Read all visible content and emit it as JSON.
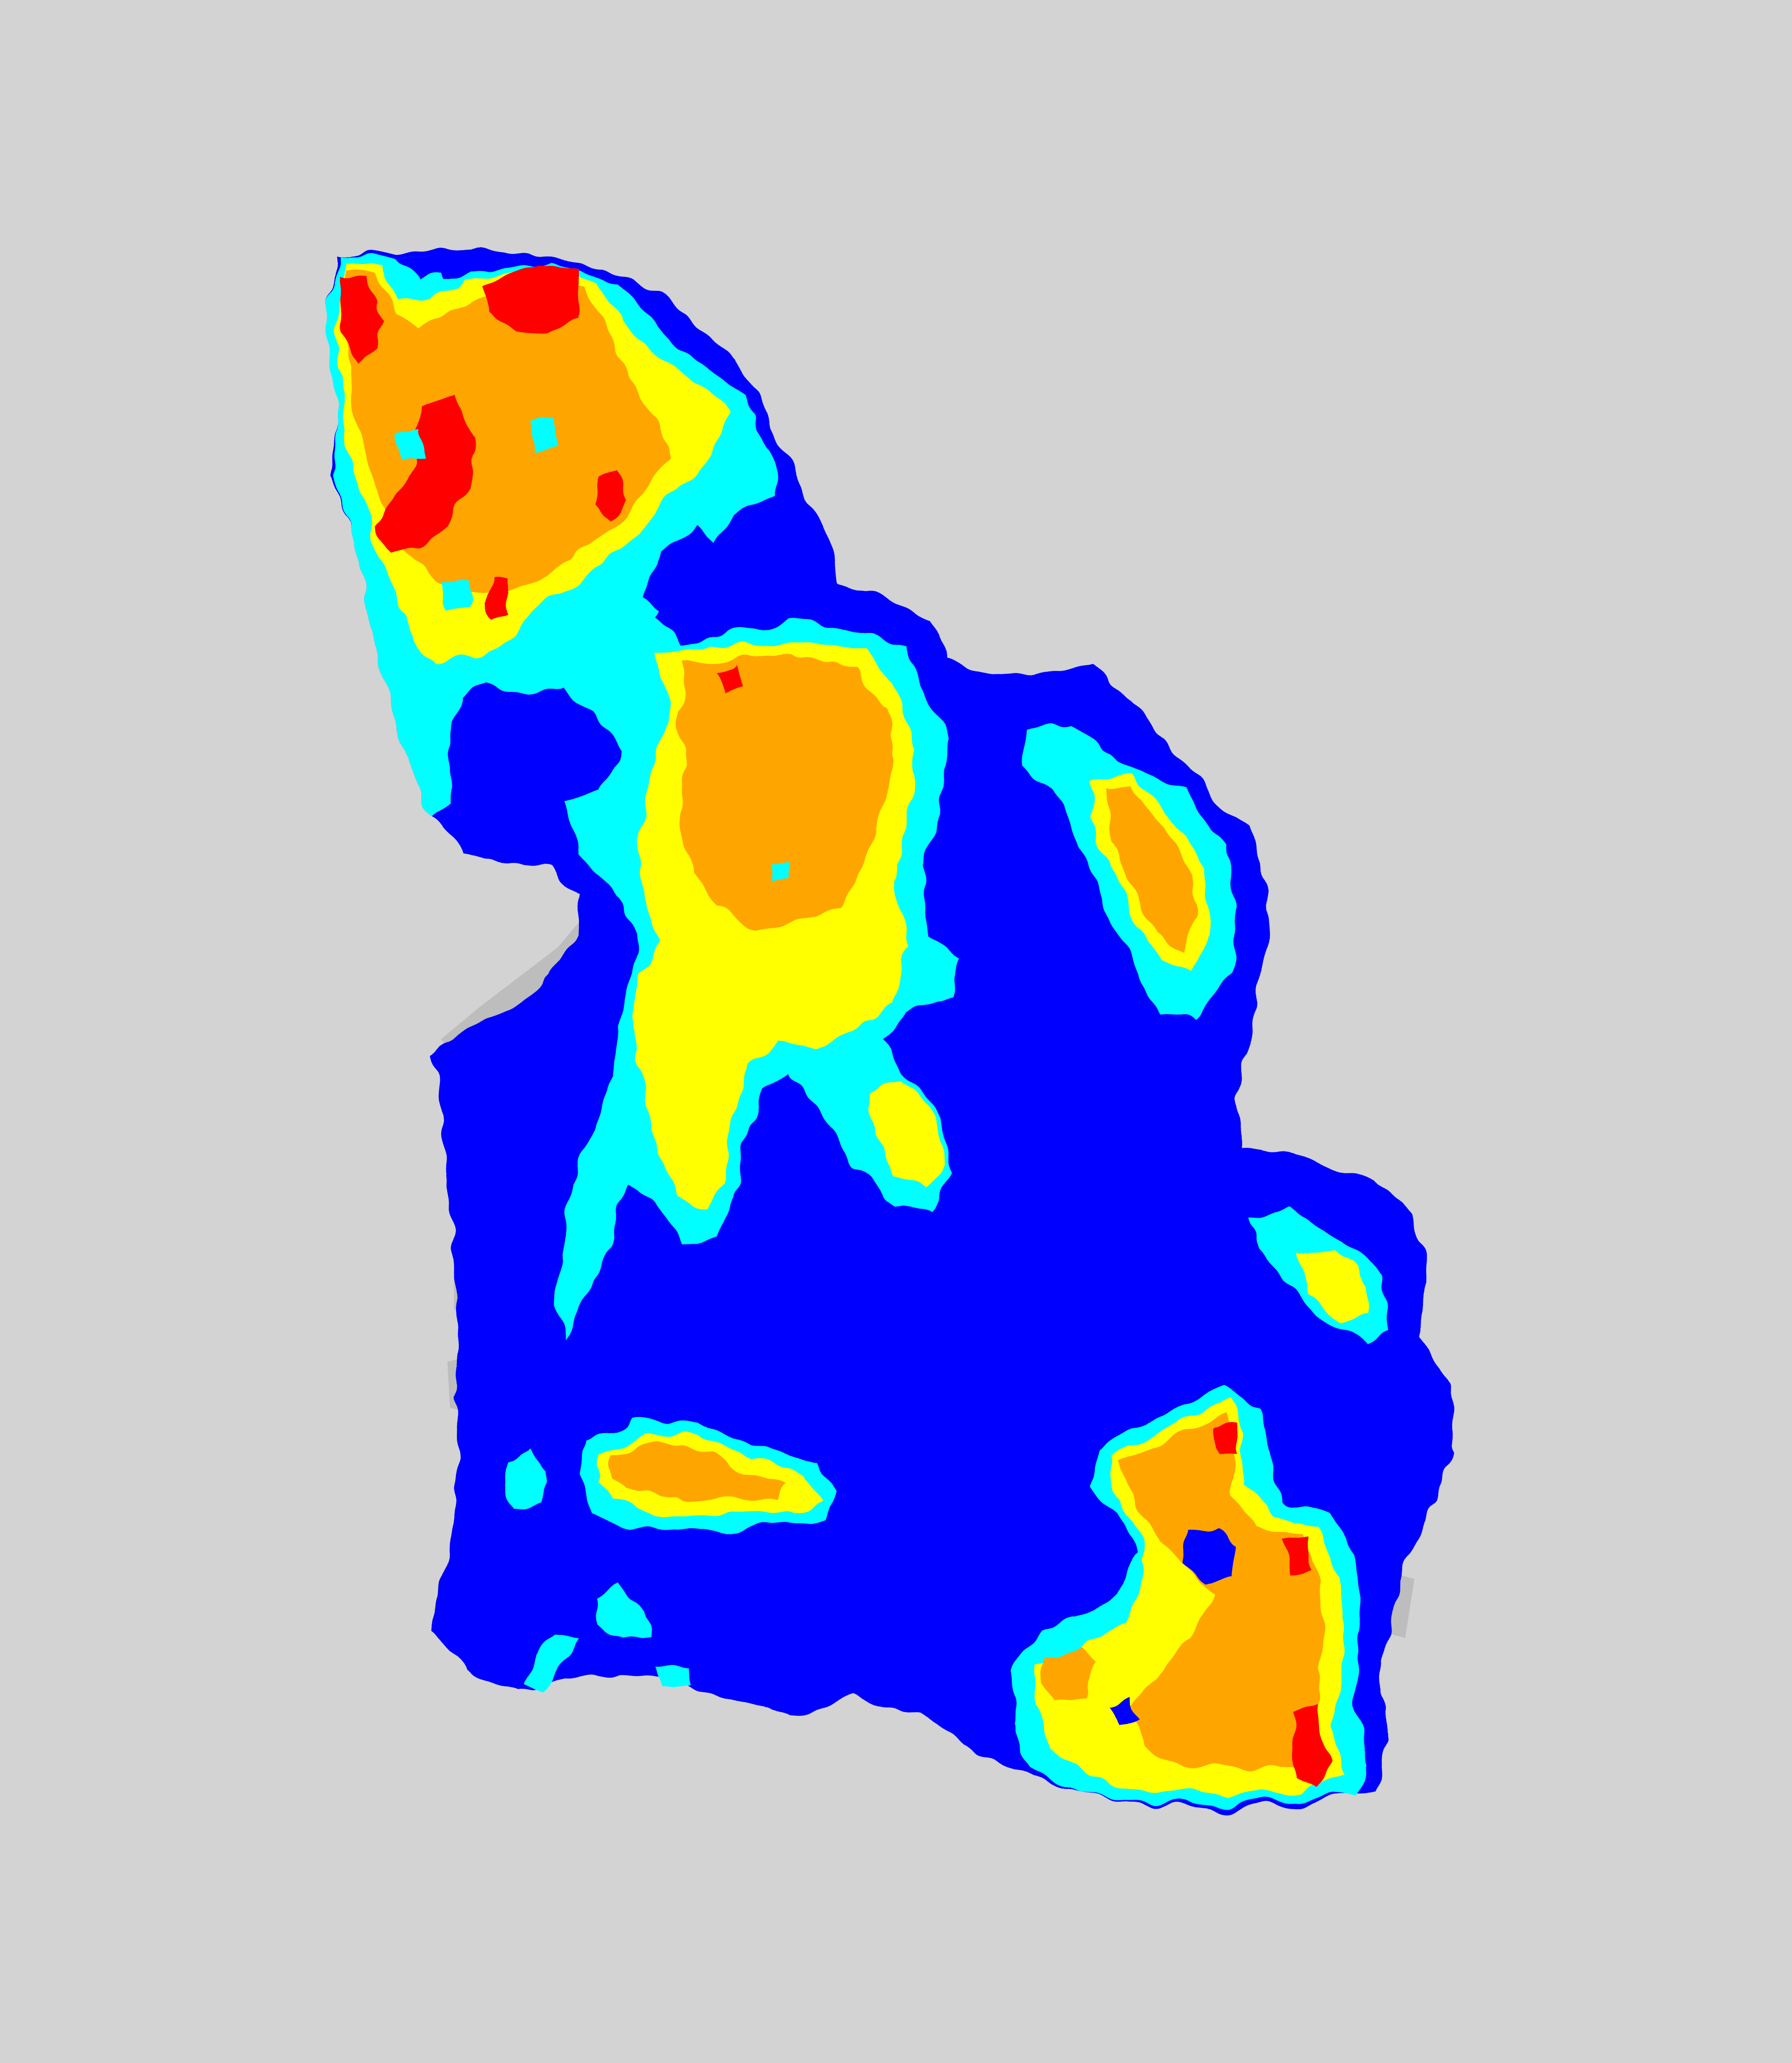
{
  "map": {
    "colors": {
      "background": "#d3d3d3",
      "shadow": "#bdbdbd",
      "level_1": "#0000ff",
      "level_2": "#00ffff",
      "level_3": "#ffff00",
      "level_4": "#ffa500",
      "level_5": "#ff0000"
    },
    "legend_levels": [
      "level_1",
      "level_2",
      "level_3",
      "level_4",
      "level_5"
    ]
  }
}
